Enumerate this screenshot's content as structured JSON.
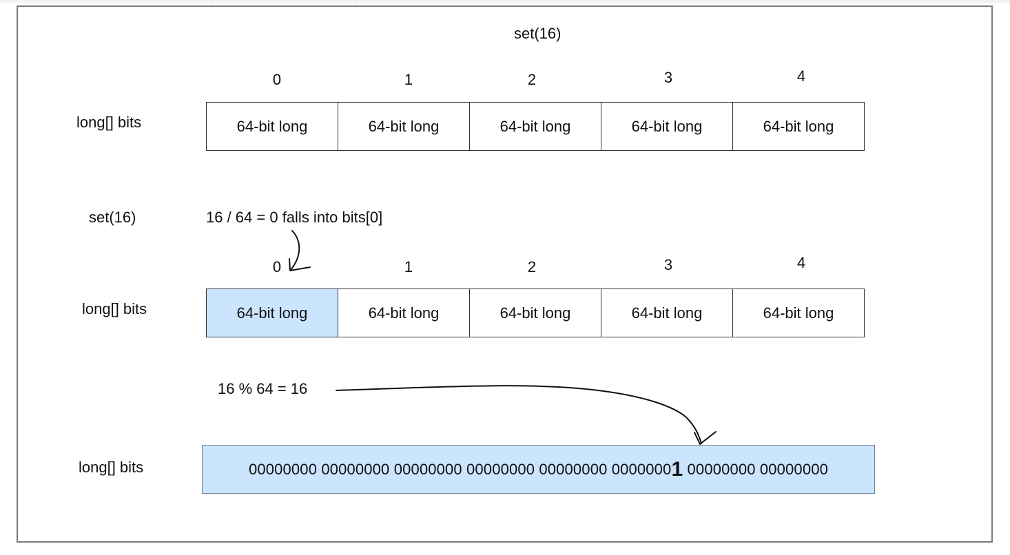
{
  "title": "set(16)",
  "indices": [
    "0",
    "1",
    "2",
    "3",
    "4"
  ],
  "row_label": "long[] bits",
  "cell_label": "64-bit long",
  "step_label": "set(16)",
  "division_note": "16 / 64 = 0  falls into bits[0]",
  "modulo_note": "16 % 64 = 16",
  "binary": {
    "before": "00000000 00000000 00000000 00000000 00000000 0000000",
    "set_bit": "1",
    "after": " 00000000 00000000"
  },
  "colors": {
    "highlight": "#cce5ff",
    "border": "#333333",
    "frame": "#7a7a7a"
  }
}
